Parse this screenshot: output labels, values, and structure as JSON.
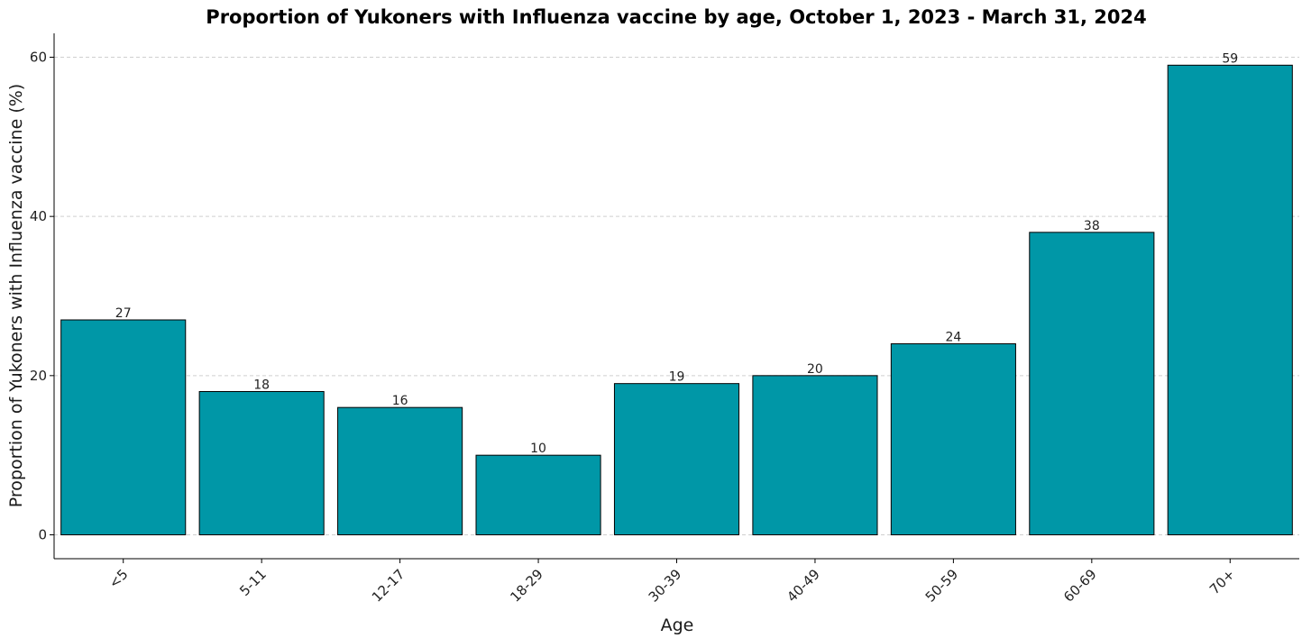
{
  "chart_data": {
    "type": "bar",
    "title": "Proportion of Yukoners with Influenza vaccine by age, October 1, 2023 - March 31, 2024",
    "xlabel": "Age",
    "ylabel": "Proportion of Yukoners with Influenza vaccine (%)",
    "categories": [
      "<5",
      "5-11",
      "12-17",
      "18-29",
      "30-39",
      "40-49",
      "50-59",
      "60-69",
      "70+"
    ],
    "values": [
      27,
      18,
      16,
      10,
      19,
      20,
      24,
      38,
      59
    ],
    "data_labels": [
      "27",
      "18",
      "16",
      "10",
      "19",
      "20",
      "24",
      "38",
      "59"
    ],
    "yticks": [
      0,
      20,
      40,
      60
    ],
    "ylim": [
      -3,
      63
    ],
    "grid": "horizontal dashed",
    "bar_color": "#0097a7"
  }
}
